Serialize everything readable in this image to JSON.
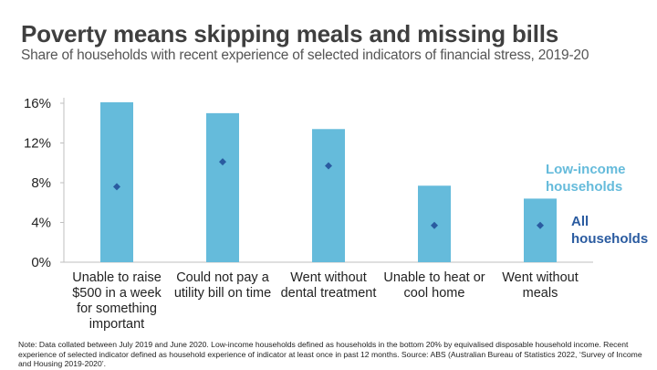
{
  "header": {
    "title": "Poverty means skipping meals and missing bills",
    "subtitle": "Share of households with recent experience of selected indicators of financial stress, 2019-20"
  },
  "colors": {
    "low_income": "#65BBDB",
    "all_households": "#2A5BA0",
    "title": "#3f3f3f",
    "axis": "#bfbfbf"
  },
  "chart_data": {
    "type": "bar",
    "title": "Poverty means skipping meals and missing bills",
    "subtitle": "Share of households with recent experience of selected indicators of financial stress, 2019-20",
    "xlabel": "",
    "ylabel": "",
    "ylim": [
      0,
      16
    ],
    "yticks": [
      0,
      4,
      8,
      12,
      16
    ],
    "ytick_labels": [
      "0%",
      "4%",
      "8%",
      "12%",
      "16%"
    ],
    "grid": false,
    "categories": [
      "Unable to raise $500 in a week for something important",
      "Could not pay a utility bill on time",
      "Went without dental treatment",
      "Unable to heat or cool home",
      "Went without meals"
    ],
    "category_lines": [
      [
        "Unable to raise",
        "$500 in a week",
        "for something",
        "important"
      ],
      [
        "Could not pay a",
        "utility bill on time"
      ],
      [
        "Went without",
        "dental treatment"
      ],
      [
        "Unable to heat or",
        "cool home"
      ],
      [
        "Went without",
        "meals"
      ]
    ],
    "series": [
      {
        "name": "Low-income households",
        "mark": "bar",
        "values": [
          16.1,
          15.0,
          13.4,
          7.7,
          6.4
        ]
      },
      {
        "name": "All households",
        "mark": "diamond",
        "values": [
          7.6,
          10.1,
          9.7,
          3.7,
          3.7
        ]
      }
    ],
    "legend": {
      "placement": "right",
      "entries": [
        {
          "lines": [
            "Low-income",
            "households"
          ]
        },
        {
          "lines": [
            "All",
            "households"
          ]
        }
      ]
    }
  },
  "footer": {
    "note": "Note: Data collated between July 2019 and June 2020. Low-income households defined as households in the bottom 20% by equivalised disposable household income. Recent experience of selected indicator defined as household experience of indicator at least once in past 12 months. Source: ABS (Australian Bureau of Statistics 2022, ‘Survey of Income and Housing 2019-2020’."
  }
}
